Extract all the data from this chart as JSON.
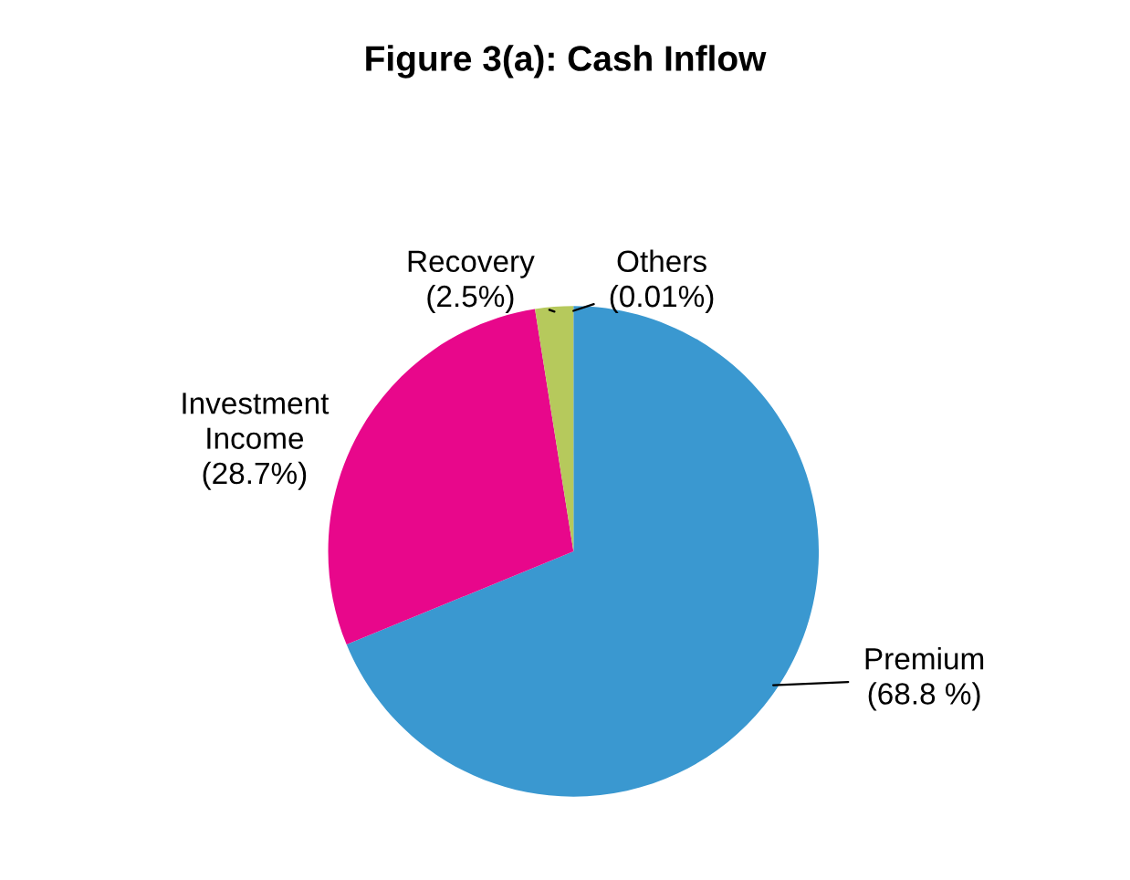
{
  "chart_data": {
    "type": "pie",
    "title": "Figure 3(a): Cash Inflow",
    "categories": [
      "Premium",
      "Investment Income",
      "Recovery",
      "Others"
    ],
    "values": [
      68.8,
      28.7,
      2.5,
      0.01
    ],
    "value_labels": [
      "(68.8 %)",
      "(28.7%)",
      "(2.5%)",
      "(0.01%)"
    ],
    "colors": [
      "#3a98d0",
      "#e8078b",
      "#b6c95c",
      "#9a9a9a"
    ],
    "legend": false
  }
}
